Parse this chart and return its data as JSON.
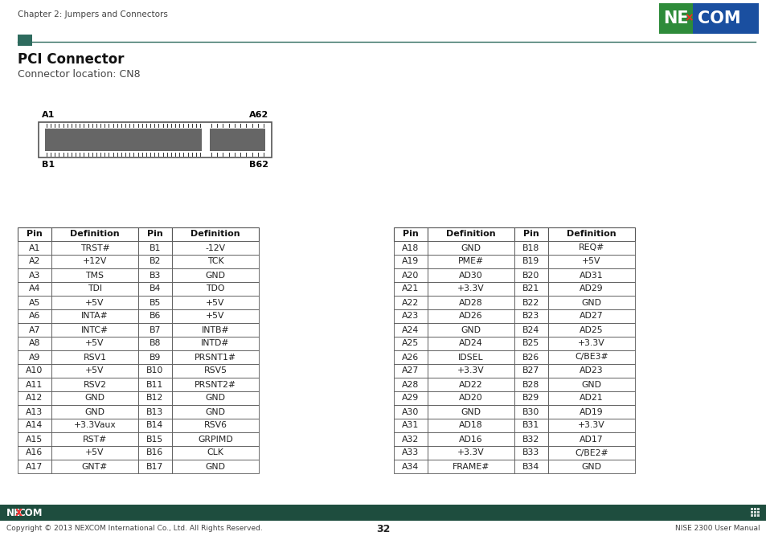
{
  "page_title": "Chapter 2: Jumpers and Connectors",
  "section_title": "PCI Connector",
  "subtitle": "Connector location: CN8",
  "teal_color": "#2E6B5E",
  "dark_teal": "#1E4D3E",
  "page_number": "32",
  "footer_left": "Copyright © 2013 NEXCOM International Co., Ltd. All Rights Reserved.",
  "footer_right": "NISE 2300 User Manual",
  "table1_headers": [
    "Pin",
    "Definition",
    "Pin",
    "Definition"
  ],
  "table1_data": [
    [
      "A1",
      "TRST#",
      "B1",
      "-12V"
    ],
    [
      "A2",
      "+12V",
      "B2",
      "TCK"
    ],
    [
      "A3",
      "TMS",
      "B3",
      "GND"
    ],
    [
      "A4",
      "TDI",
      "B4",
      "TDO"
    ],
    [
      "A5",
      "+5V",
      "B5",
      "+5V"
    ],
    [
      "A6",
      "INTA#",
      "B6",
      "+5V"
    ],
    [
      "A7",
      "INTC#",
      "B7",
      "INTB#"
    ],
    [
      "A8",
      "+5V",
      "B8",
      "INTD#"
    ],
    [
      "A9",
      "RSV1",
      "B9",
      "PRSNT1#"
    ],
    [
      "A10",
      "+5V",
      "B10",
      "RSV5"
    ],
    [
      "A11",
      "RSV2",
      "B11",
      "PRSNT2#"
    ],
    [
      "A12",
      "GND",
      "B12",
      "GND"
    ],
    [
      "A13",
      "GND",
      "B13",
      "GND"
    ],
    [
      "A14",
      "+3.3Vaux",
      "B14",
      "RSV6"
    ],
    [
      "A15",
      "RST#",
      "B15",
      "GRPIMD"
    ],
    [
      "A16",
      "+5V",
      "B16",
      "CLK"
    ],
    [
      "A17",
      "GNT#",
      "B17",
      "GND"
    ]
  ],
  "table2_headers": [
    "Pin",
    "Definition",
    "Pin",
    "Definition"
  ],
  "table2_data": [
    [
      "A18",
      "GND",
      "B18",
      "REQ#"
    ],
    [
      "A19",
      "PME#",
      "B19",
      "+5V"
    ],
    [
      "A20",
      "AD30",
      "B20",
      "AD31"
    ],
    [
      "A21",
      "+3.3V",
      "B21",
      "AD29"
    ],
    [
      "A22",
      "AD28",
      "B22",
      "GND"
    ],
    [
      "A23",
      "AD26",
      "B23",
      "AD27"
    ],
    [
      "A24",
      "GND",
      "B24",
      "AD25"
    ],
    [
      "A25",
      "AD24",
      "B25",
      "+3.3V"
    ],
    [
      "A26",
      "IDSEL",
      "B26",
      "C/BE3#"
    ],
    [
      "A27",
      "+3.3V",
      "B27",
      "AD23"
    ],
    [
      "A28",
      "AD22",
      "B28",
      "GND"
    ],
    [
      "A29",
      "AD20",
      "B29",
      "AD21"
    ],
    [
      "A30",
      "GND",
      "B30",
      "AD19"
    ],
    [
      "A31",
      "AD18",
      "B31",
      "+3.3V"
    ],
    [
      "A32",
      "AD16",
      "B32",
      "AD17"
    ],
    [
      "A33",
      "+3.3V",
      "B33",
      "C/BE2#"
    ],
    [
      "A34",
      "FRAME#",
      "B34",
      "GND"
    ]
  ]
}
